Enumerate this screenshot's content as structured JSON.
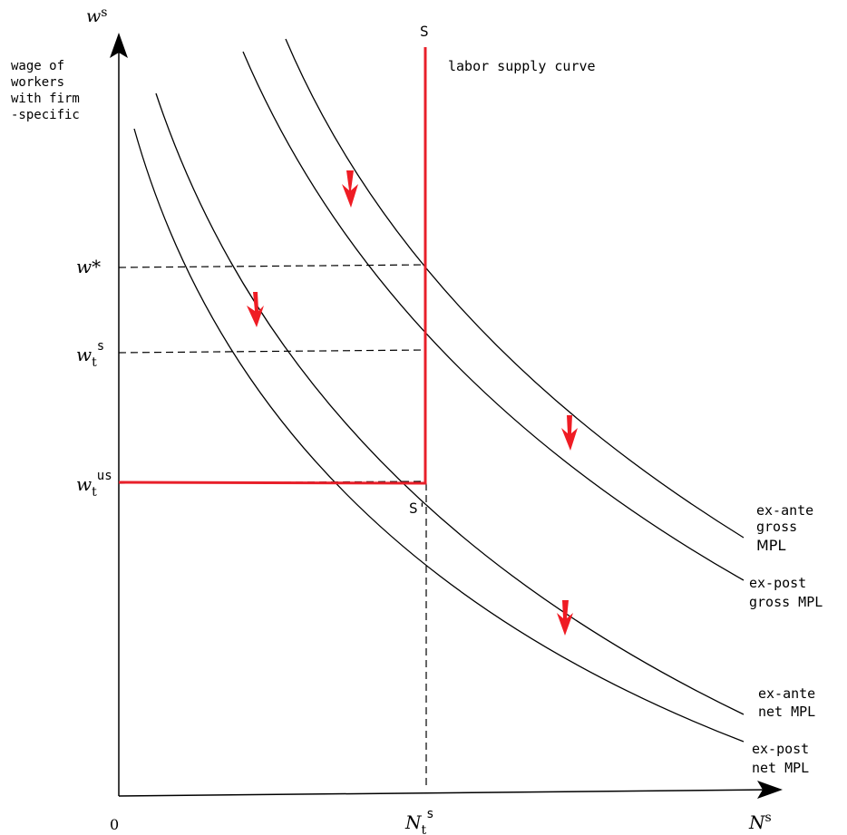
{
  "axes": {
    "y_label": "w",
    "y_label_sup": "s",
    "y_description": [
      "wage of",
      "workers",
      "with firm",
      "-specific"
    ],
    "x_label": "N",
    "x_label_sup": "s",
    "origin": "0"
  },
  "y_ticks": {
    "w_star": "w*",
    "wts_base": "w",
    "wts_sub": "t",
    "wts_sup": "s",
    "wtus_base": "w",
    "wtus_sub": "t",
    "wtus_sup": "us"
  },
  "x_tick": {
    "base": "N",
    "sub": "t",
    "sup": "s"
  },
  "supply": {
    "label_top": "S",
    "label_bottom": "S'",
    "curve_label": "labor supply curve"
  },
  "curves": {
    "ex_ante_gross": [
      "ex-ante",
      "gross",
      "MPL"
    ],
    "ex_post_gross": [
      "ex-post",
      "gross MPL"
    ],
    "ex_ante_net": [
      "ex-ante",
      "net MPL"
    ],
    "ex_post_net": [
      "ex-post",
      "net MPL"
    ]
  },
  "colors": {
    "supply": "#e8202a",
    "arrow": "#ef1c24",
    "ink": "#000000"
  }
}
